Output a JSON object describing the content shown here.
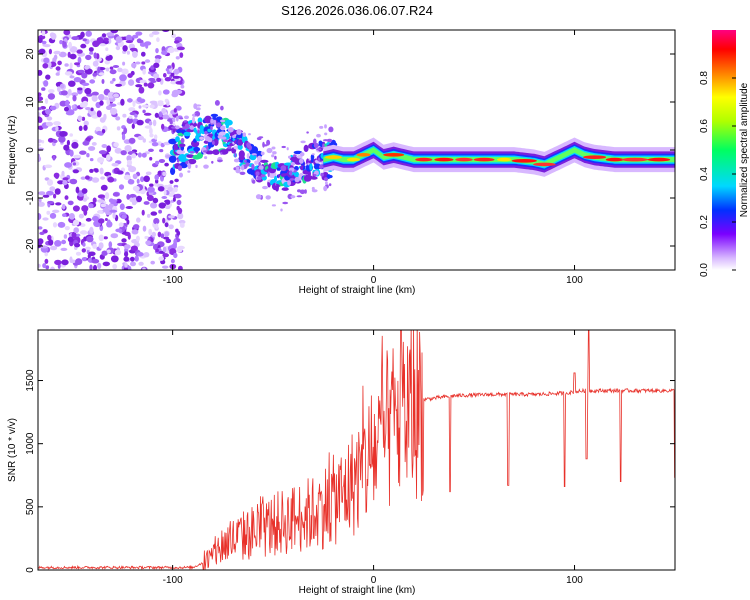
{
  "chart_data": [
    {
      "type": "heatmap",
      "title": "S126.2026.036.06.07.R24",
      "xlabel": "Height of straight line (km)",
      "ylabel": "Frequency (Hz)",
      "xlim": [
        -167,
        150
      ],
      "ylim": [
        -25,
        25
      ],
      "xticks": [
        -100,
        0,
        100
      ],
      "xtick_labels": [
        "-100",
        "0",
        "100"
      ],
      "yticks": [
        -20,
        -10,
        0,
        10,
        20
      ],
      "ytick_labels": [
        "-20",
        "-10",
        "0",
        "10",
        "20"
      ],
      "colorbar": {
        "label": "Normalized spectral amplitude",
        "range": [
          0,
          1
        ],
        "ticks": [
          0.0,
          0.2,
          0.4,
          0.6,
          0.8
        ],
        "tick_labels": [
          "0.0",
          "0.2",
          "0.4",
          "0.6",
          "0.8"
        ]
      },
      "ridge": {
        "x": [
          -100,
          -95,
          -90,
          -85,
          -80,
          -75,
          -70,
          -65,
          -60,
          -55,
          -50,
          -45,
          -40,
          -35,
          -30,
          -25,
          -20,
          -15,
          -10,
          -5,
          0,
          5,
          10,
          15,
          20,
          30,
          40,
          50,
          60,
          70,
          80,
          85,
          90,
          95,
          100,
          105,
          110,
          120,
          130,
          140,
          150
        ],
        "freq": [
          0,
          1,
          2,
          3,
          3.5,
          3,
          2,
          0,
          -2,
          -4,
          -5,
          -6,
          -4,
          -3,
          -2.5,
          -2,
          -1.5,
          -2,
          -2,
          -1,
          0,
          -1.5,
          -1,
          -1.5,
          -2,
          -2,
          -2,
          -2,
          -2,
          -2,
          -2.5,
          -3,
          -2,
          -1,
          0,
          -1,
          -1.5,
          -2,
          -2,
          -2,
          -2
        ]
      },
      "noise_region_x": [
        -167,
        -95
      ]
    },
    {
      "type": "line",
      "xlabel": "Height of straight line (km)",
      "ylabel": "SNR (10 * v/v)",
      "xlim": [
        -167,
        150
      ],
      "ylim": [
        0,
        1900
      ],
      "xticks": [
        -100,
        0,
        100
      ],
      "xtick_labels": [
        "-100",
        "0",
        "100"
      ],
      "yticks": [
        0,
        500,
        1000,
        1500
      ],
      "ytick_labels": [
        "0",
        "500",
        "1000",
        "1500"
      ],
      "series": [
        {
          "name": "SNR",
          "color": "#e8312a",
          "envelope_x": [
            -167,
            -90,
            -82,
            -75,
            -60,
            -45,
            -30,
            -15,
            -5,
            5,
            15,
            25,
            40,
            60,
            80,
            95,
            105,
            120,
            135,
            150
          ],
          "envelope_y": [
            20,
            20,
            80,
            200,
            300,
            380,
            450,
            600,
            800,
            1050,
            1250,
            1350,
            1380,
            1390,
            1390,
            1400,
            1420,
            1420,
            1420,
            1420
          ],
          "dips": [
            {
              "x": 38,
              "y": 620
            },
            {
              "x": 67,
              "y": 670
            },
            {
              "x": 95,
              "y": 660
            },
            {
              "x": 106,
              "y": 880
            },
            {
              "x": 123,
              "y": 700
            },
            {
              "x": 150,
              "y": 730
            }
          ],
          "spikes": [
            {
              "x": 100,
              "y": 1560
            },
            {
              "x": 107,
              "y": 1900
            }
          ]
        }
      ]
    }
  ],
  "colors": {
    "purple": "#8a2be2",
    "line": "#e8312a"
  }
}
